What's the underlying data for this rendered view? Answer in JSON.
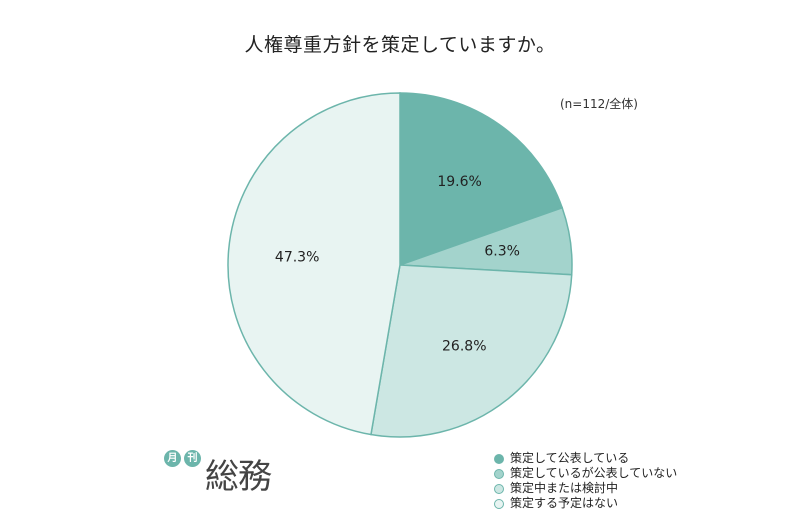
{
  "chart_data": {
    "type": "pie",
    "title": "人権尊重方針を策定していますか。",
    "note": "(n=112/全体)",
    "slices": [
      {
        "label": "策定して公表している",
        "value": 19.6,
        "display": "19.6%",
        "color": "#6cb5ab"
      },
      {
        "label": "策定しているが公表していない",
        "value": 6.3,
        "display": "6.3%",
        "color": "#a3d3cc"
      },
      {
        "label": "策定中または検討中",
        "value": 26.8,
        "display": "26.8%",
        "color": "#cce7e3"
      },
      {
        "label": "策定する予定はない",
        "value": 47.3,
        "display": "47.3%",
        "color": "#e8f4f2"
      }
    ],
    "stroke_color": "#6cb5ab",
    "legend_position": "bottom-right"
  },
  "logo": {
    "badge1": "月",
    "badge2": "刊",
    "text": "総務",
    "color": "#6cb5ab"
  }
}
